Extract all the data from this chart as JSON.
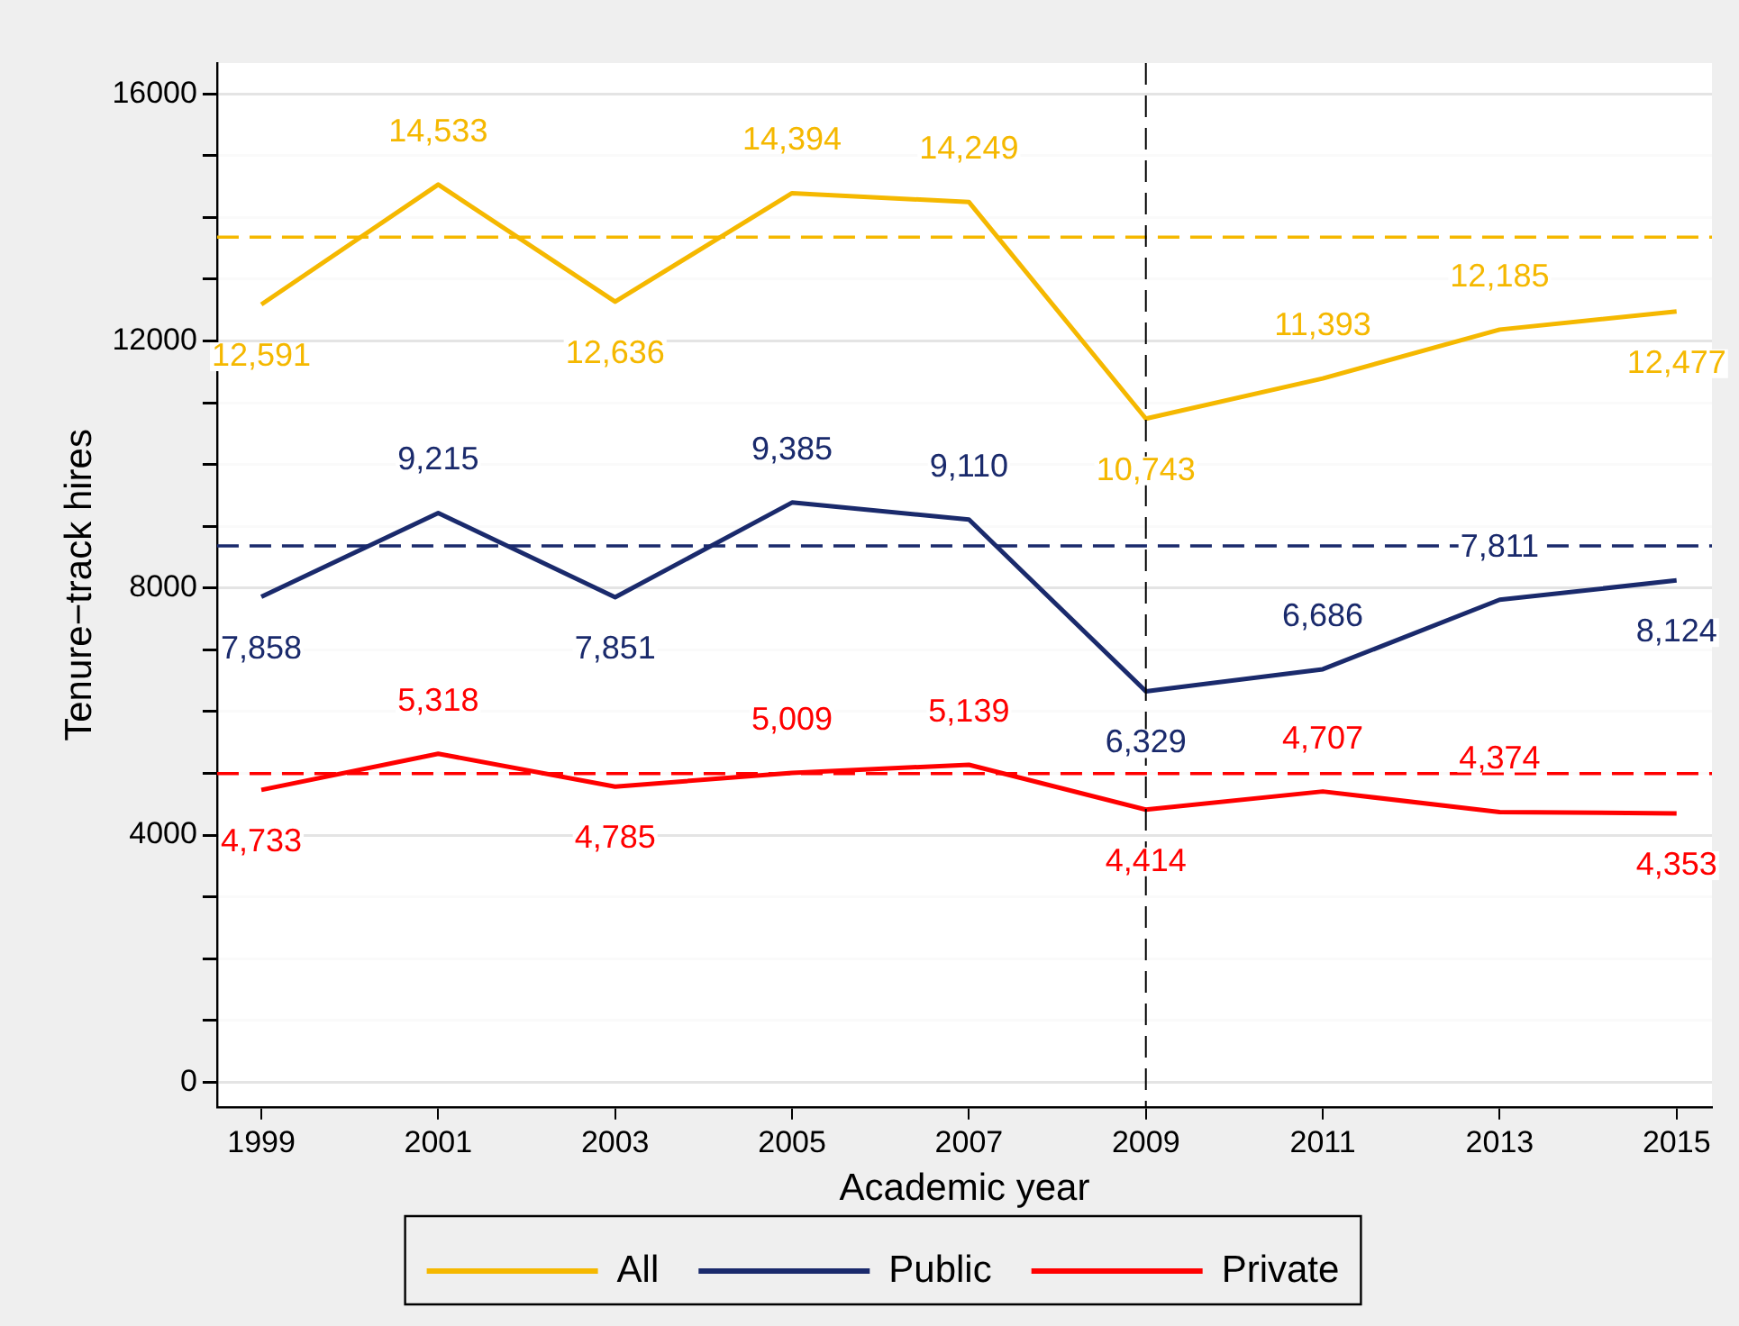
{
  "chart_data": {
    "type": "line",
    "xlabel": "Academic year",
    "ylabel": "Tenure−track hires",
    "x": [
      1999,
      2001,
      2003,
      2005,
      2007,
      2009,
      2011,
      2013,
      2015
    ],
    "series": [
      {
        "name": "All",
        "color": "#f5b800",
        "values": [
          12591,
          14533,
          12636,
          14394,
          14249,
          10743,
          11393,
          12185,
          12477
        ],
        "value_labels": [
          "12,591",
          "14,533",
          "12,636",
          "14,394",
          "14,249",
          "10,743",
          "11,393",
          "12,185",
          "12,477"
        ]
      },
      {
        "name": "Public",
        "color": "#1a2a6c",
        "values": [
          7858,
          9215,
          7851,
          9385,
          9110,
          6329,
          6686,
          7811,
          8124
        ],
        "value_labels": [
          "7,858",
          "9,215",
          "7,851",
          "9,385",
          "9,110",
          "6,329",
          "6,686",
          "7,811",
          "8,124"
        ]
      },
      {
        "name": "Private",
        "color": "#ff0000",
        "values": [
          4733,
          5318,
          4785,
          5009,
          5139,
          4414,
          4707,
          4374,
          4353
        ],
        "value_labels": [
          "4,733",
          "5,318",
          "4,785",
          "5,009",
          "5,139",
          "4,414",
          "4,707",
          "4,374",
          "4,353"
        ]
      }
    ],
    "xlim": [
      1998.5,
      2015.4
    ],
    "xticks": [
      1999,
      2001,
      2003,
      2005,
      2007,
      2009,
      2011,
      2013,
      2015
    ],
    "ylim": [
      -400,
      16500
    ],
    "yticks": [
      0,
      {
        "value": 1000,
        "label": null
      },
      {
        "value": 2000,
        "label": null
      },
      {
        "value": 3000,
        "label": null
      },
      4000,
      {
        "value": 5000,
        "label": null
      },
      {
        "value": 6000,
        "label": null
      },
      {
        "value": 7000,
        "label": null
      },
      8000,
      {
        "value": 9000,
        "label": null
      },
      {
        "value": 10000,
        "label": null
      },
      {
        "value": 11000,
        "label": null
      },
      12000,
      {
        "value": 13000,
        "label": null
      },
      {
        "value": 14000,
        "label": null
      },
      {
        "value": 15000,
        "label": null
      },
      16000
    ],
    "ref_lines": [
      {
        "axis": "y",
        "value": 13681,
        "color": "#f5b800",
        "line_style": "dashed"
      },
      {
        "axis": "y",
        "value": 8684,
        "color": "#1a2a6c",
        "line_style": "dashed"
      },
      {
        "axis": "y",
        "value": 4997,
        "color": "#ff0000",
        "line_style": "dashed"
      },
      {
        "axis": "x",
        "value": 2009,
        "color": "#000000",
        "line_style": "dashed"
      }
    ],
    "grid": "y",
    "legend": "bottom",
    "marker": "none",
    "line_style": "solid"
  }
}
